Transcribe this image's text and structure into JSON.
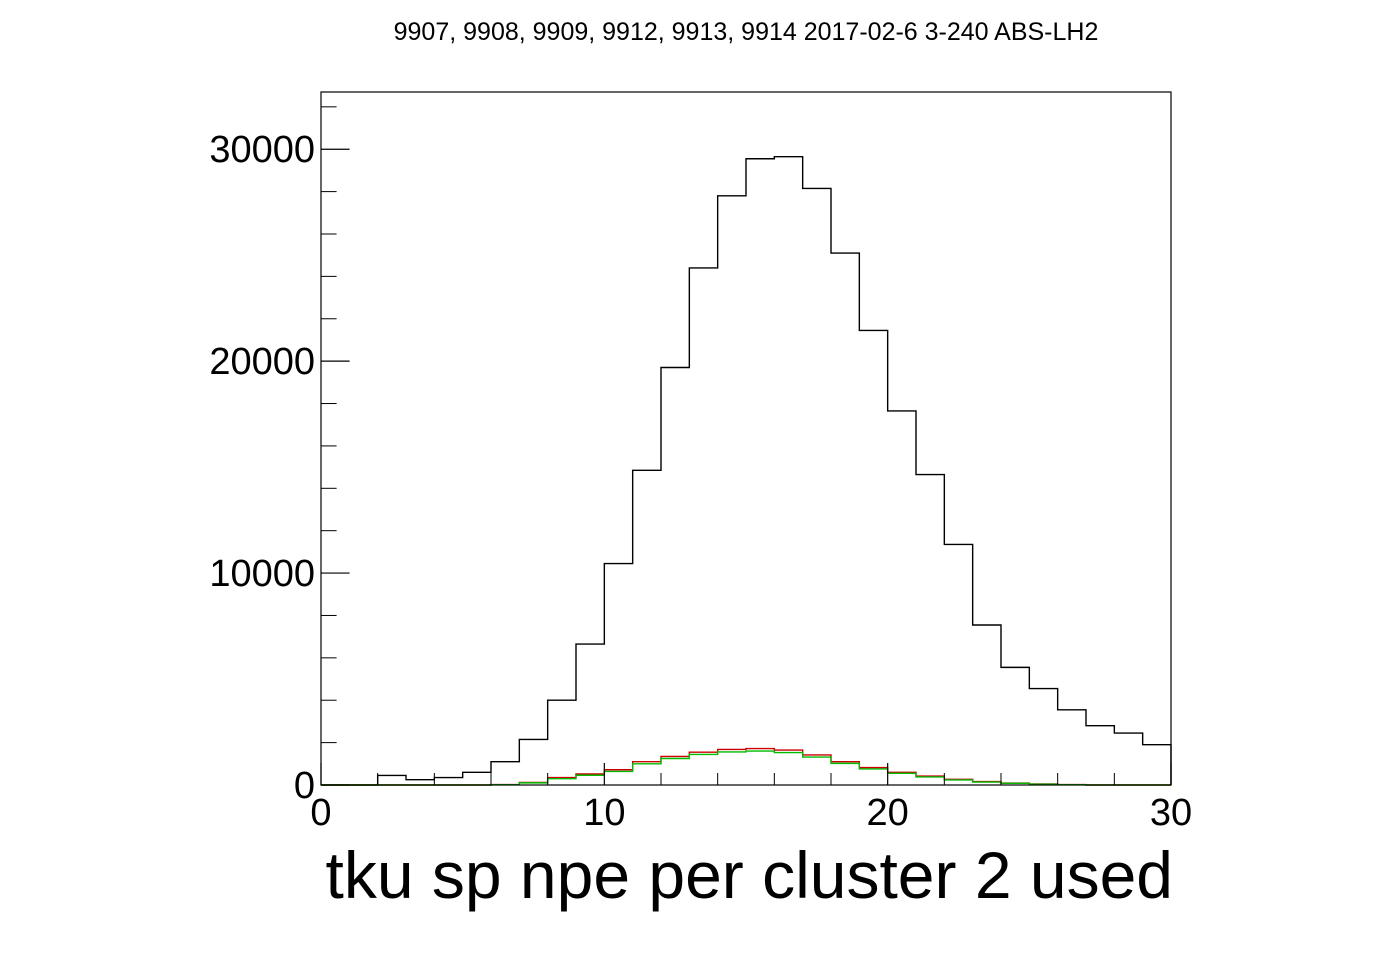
{
  "chart_data": {
    "type": "bar",
    "title": "9907, 9908, 9909, 9912, 9913, 9914 2017-02-6 3-240 ABS-LH2",
    "xlabel": "tku sp npe per cluster 2 used",
    "ylabel": "",
    "xlim": [
      0,
      30
    ],
    "ylim": [
      0,
      32700
    ],
    "xticks": [
      0,
      10,
      20,
      30
    ],
    "yticks": [
      0,
      10000,
      20000,
      30000
    ],
    "xtick_labels": [
      "0",
      "10",
      "20",
      "30"
    ],
    "ytick_labels": [
      "0",
      "10000",
      "20000",
      "30000"
    ],
    "bin_edges": [
      0,
      1,
      2,
      3,
      4,
      5,
      6,
      7,
      8,
      9,
      10,
      11,
      12,
      13,
      14,
      15,
      16,
      17,
      18,
      19,
      20,
      21,
      22,
      23,
      24,
      25,
      26,
      27,
      28,
      29,
      30
    ],
    "grid": false,
    "series": [
      {
        "color": "#000000",
        "values": [
          0,
          0,
          450,
          250,
          350,
          600,
          1100,
          2150,
          4000,
          6650,
          10450,
          14850,
          19700,
          24400,
          27800,
          29550,
          29650,
          28150,
          25100,
          21450,
          17650,
          14650,
          11350,
          7550,
          5550,
          4550,
          3550,
          2800,
          2450,
          1900
        ]
      },
      {
        "color": "#cc0000",
        "values": [
          0,
          0,
          0,
          0,
          0,
          0,
          20,
          120,
          350,
          520,
          720,
          1100,
          1350,
          1550,
          1680,
          1720,
          1650,
          1420,
          1100,
          820,
          600,
          420,
          270,
          160,
          90,
          50,
          20,
          0,
          0,
          0
        ]
      },
      {
        "color": "#00bb00",
        "values": [
          0,
          0,
          0,
          0,
          0,
          0,
          15,
          100,
          300,
          460,
          640,
          1000,
          1250,
          1440,
          1560,
          1600,
          1530,
          1320,
          1020,
          760,
          550,
          380,
          240,
          140,
          80,
          40,
          15,
          0,
          0,
          0
        ]
      }
    ]
  }
}
